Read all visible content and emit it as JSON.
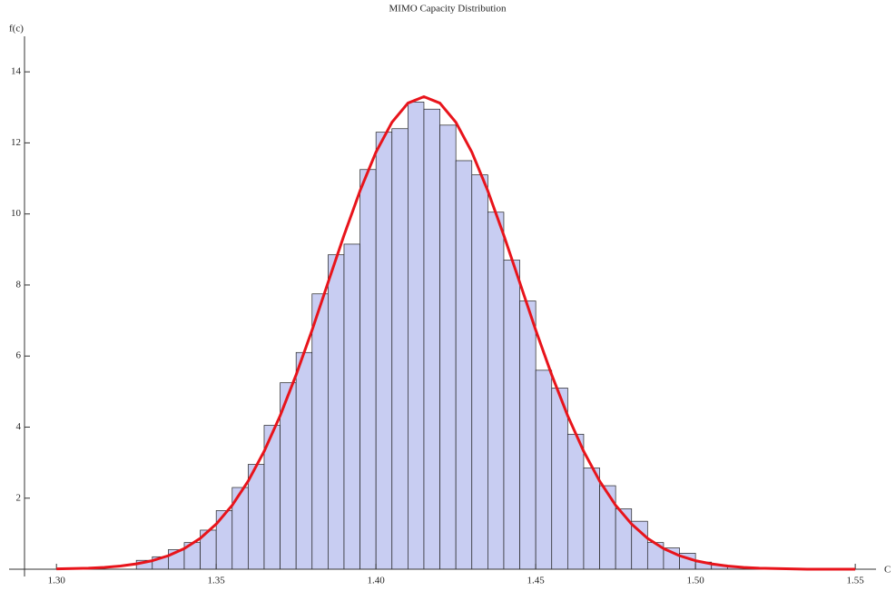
{
  "chart_data": {
    "type": "histogram",
    "title": "MIMO Capacity Distribution",
    "xlabel": "C",
    "ylabel": "f(c)",
    "bins": [
      1.325,
      1.33,
      1.335,
      1.34,
      1.345,
      1.35,
      1.355,
      1.36,
      1.365,
      1.37,
      1.375,
      1.38,
      1.385,
      1.39,
      1.395,
      1.4,
      1.405,
      1.41,
      1.415,
      1.42,
      1.425,
      1.43,
      1.435,
      1.44,
      1.445,
      1.45,
      1.455,
      1.46,
      1.465,
      1.47,
      1.475,
      1.48,
      1.485,
      1.49,
      1.495,
      1.5,
      1.505,
      1.51,
      1.515
    ],
    "values": [
      0.25,
      0.35,
      0.55,
      0.75,
      1.1,
      1.65,
      2.3,
      2.95,
      4.05,
      5.25,
      6.1,
      7.75,
      8.85,
      9.15,
      11.25,
      12.3,
      12.4,
      13.15,
      12.95,
      12.5,
      11.5,
      11.1,
      10.05,
      8.7,
      7.55,
      5.6,
      5.1,
      3.8,
      2.85,
      2.35,
      1.7,
      1.35,
      0.75,
      0.6,
      0.45,
      0.2,
      0.12,
      0.08
    ],
    "color": "#c8cdf2",
    "curve": {
      "color": "#e8141b",
      "x": [
        1.3,
        1.305,
        1.31,
        1.315,
        1.32,
        1.325,
        1.33,
        1.335,
        1.34,
        1.345,
        1.35,
        1.355,
        1.36,
        1.365,
        1.37,
        1.375,
        1.38,
        1.385,
        1.39,
        1.395,
        1.4,
        1.405,
        1.41,
        1.415,
        1.42,
        1.425,
        1.43,
        1.435,
        1.44,
        1.445,
        1.45,
        1.455,
        1.46,
        1.465,
        1.47,
        1.475,
        1.48,
        1.485,
        1.49,
        1.495,
        1.5,
        1.505,
        1.51,
        1.515,
        1.52,
        1.525,
        1.53,
        1.535,
        1.54,
        1.545,
        1.55
      ],
      "values": [
        0.01,
        0.02,
        0.03,
        0.05,
        0.09,
        0.15,
        0.24,
        0.38,
        0.58,
        0.87,
        1.27,
        1.8,
        2.48,
        3.32,
        4.32,
        5.47,
        6.73,
        8.07,
        9.4,
        10.65,
        11.74,
        12.58,
        13.12,
        13.3,
        13.12,
        12.58,
        11.74,
        10.65,
        9.4,
        8.07,
        6.73,
        5.47,
        4.32,
        3.32,
        2.48,
        1.8,
        1.27,
        0.87,
        0.58,
        0.38,
        0.24,
        0.15,
        0.09,
        0.05,
        0.03,
        0.02,
        0.01,
        0,
        0,
        0,
        0
      ]
    },
    "xlim": [
      1.29,
      1.5565
    ],
    "ylim": [
      0,
      15
    ],
    "xticks": [
      {
        "value": 1.3,
        "label": "1.30"
      },
      1.35,
      {
        "value": 1.4,
        "label": "1.40"
      },
      1.45,
      {
        "value": 1.5,
        "label": "1.50"
      },
      1.55
    ],
    "yticks": [
      2,
      4,
      6,
      8,
      10,
      12,
      14
    ]
  }
}
